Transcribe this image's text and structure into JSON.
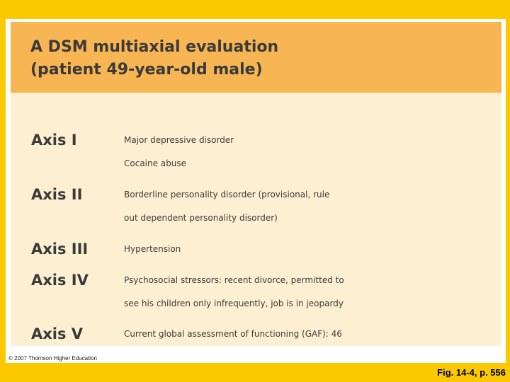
{
  "title": {
    "line1": "A DSM multiaxial evaluation",
    "line2": "(patient 49-year-old male)"
  },
  "axes": [
    {
      "label": "Axis I",
      "lines": [
        "Major depressive disorder",
        "Cocaine abuse"
      ]
    },
    {
      "label": "Axis II",
      "lines": [
        "Borderline personality disorder (provisional, rule",
        "out dependent personality disorder)"
      ]
    },
    {
      "label": "Axis III",
      "lines": [
        "Hypertension"
      ]
    },
    {
      "label": "Axis IV",
      "lines": [
        "Psychosocial stressors: recent divorce, permitted to",
        "see his children only infrequently, job is in jeopardy"
      ]
    },
    {
      "label": "Axis V",
      "lines": [
        "Current global assessment of functioning (GAF): 46"
      ]
    }
  ],
  "copyright": "© 2007 Thomson Higher Education",
  "figure_ref": "Fig. 14-4, p. 556",
  "colors": {
    "background": "#fcc800",
    "header": "#f7b653",
    "content": "#fdf0d2",
    "text": "#3a3a3a"
  }
}
